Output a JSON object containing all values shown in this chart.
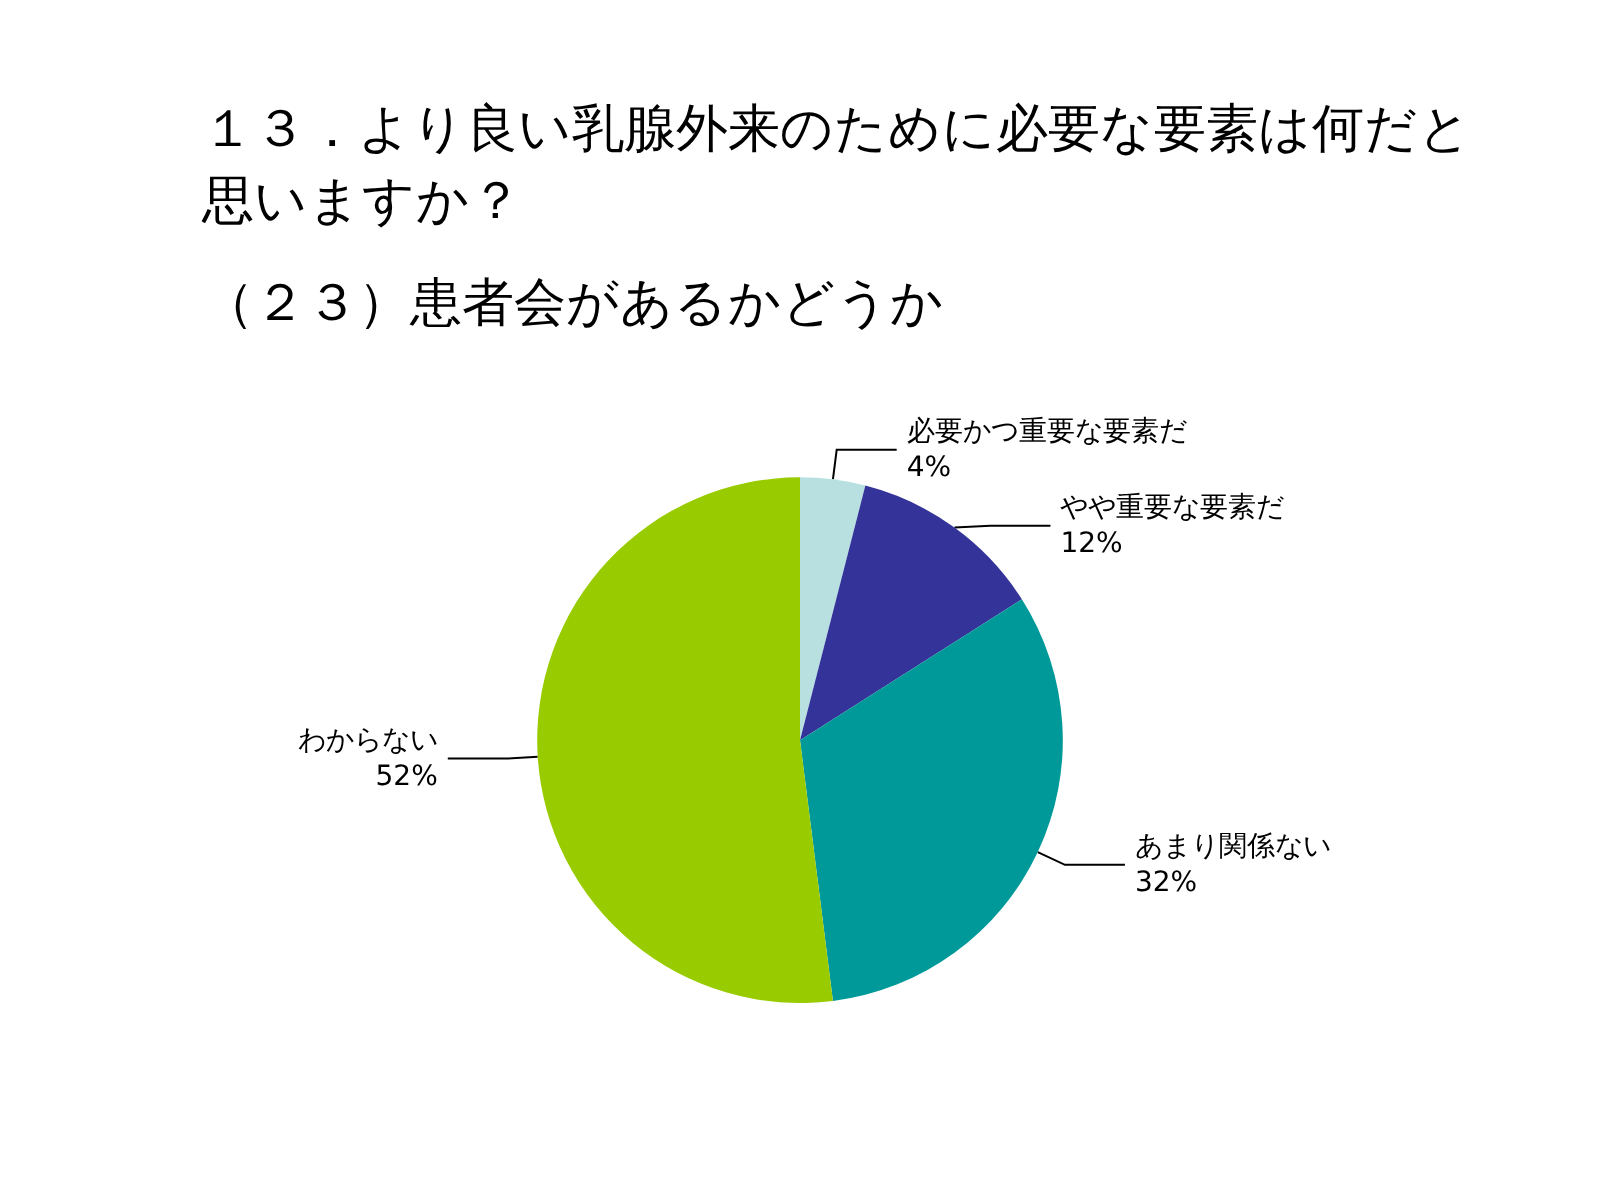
{
  "chart_data": {
    "type": "pie",
    "title": "１３．より良い乳腺外来のために必要な要素は何だと思いますか？",
    "subtitle": "（２３）患者会があるかどうか",
    "categories": [
      "必要かつ重要な要素だ",
      "やや重要な要素だ",
      "あまり関係ない",
      "わからない"
    ],
    "values": [
      4,
      12,
      32,
      52
    ],
    "colors": [
      "#b8e0e0",
      "#333399",
      "#009999",
      "#99cc00"
    ],
    "value_labels": [
      "4%",
      "12%",
      "32%",
      "52%"
    ],
    "legend": false
  }
}
